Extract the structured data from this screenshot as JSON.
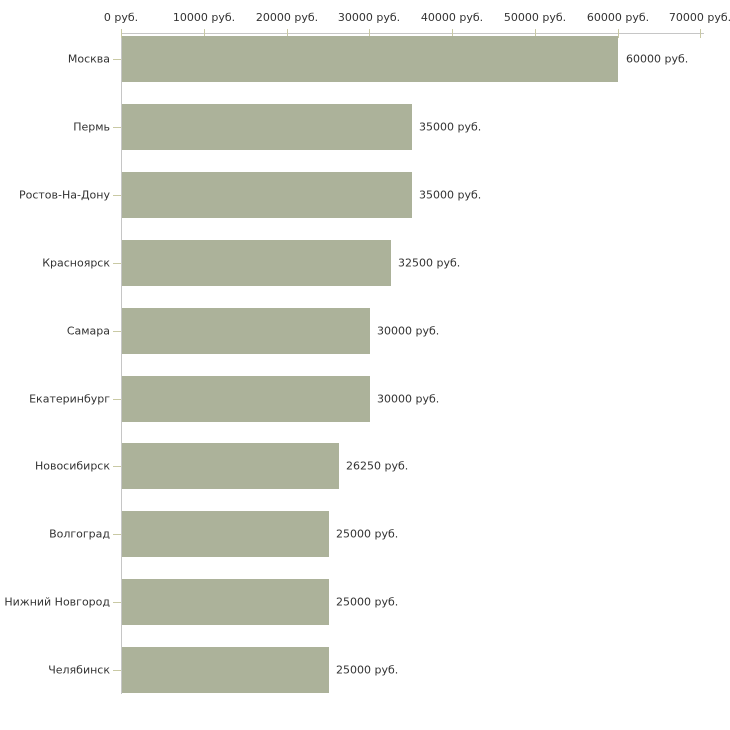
{
  "chart_data": {
    "type": "bar",
    "orientation": "horizontal",
    "title": "",
    "xlabel": "",
    "ylabel": "",
    "categories": [
      "Москва",
      "Пермь",
      "Ростов-На-Дону",
      "Красноярск",
      "Самара",
      "Екатеринбург",
      "Новосибирск",
      "Волгоград",
      "Нижний Новгород",
      "Челябинск"
    ],
    "values": [
      60000,
      35000,
      35000,
      32500,
      30000,
      30000,
      26250,
      25000,
      25000,
      25000
    ],
    "value_labels": [
      "60000 руб.",
      "35000 руб.",
      "35000 руб.",
      "32500 руб.",
      "30000 руб.",
      "30000 руб.",
      "26250 руб.",
      "25000 руб.",
      "25000 руб.",
      "25000 руб."
    ],
    "x_ticks": [
      0,
      10000,
      20000,
      30000,
      40000,
      50000,
      60000,
      70000
    ],
    "x_tick_labels": [
      "0 руб.",
      "10000 руб.",
      "20000 руб.",
      "30000 руб.",
      "40000 руб.",
      "50000 руб.",
      "60000 руб.",
      "70000 руб."
    ],
    "xlim": [
      0,
      70000
    ],
    "grid": false,
    "legend": null,
    "colors": {
      "bar_fill": "#acb29a",
      "axis_line": "#c6c6c6",
      "tick_mark": "#c9c9a4",
      "text": "#333333",
      "background": "#ffffff"
    }
  }
}
